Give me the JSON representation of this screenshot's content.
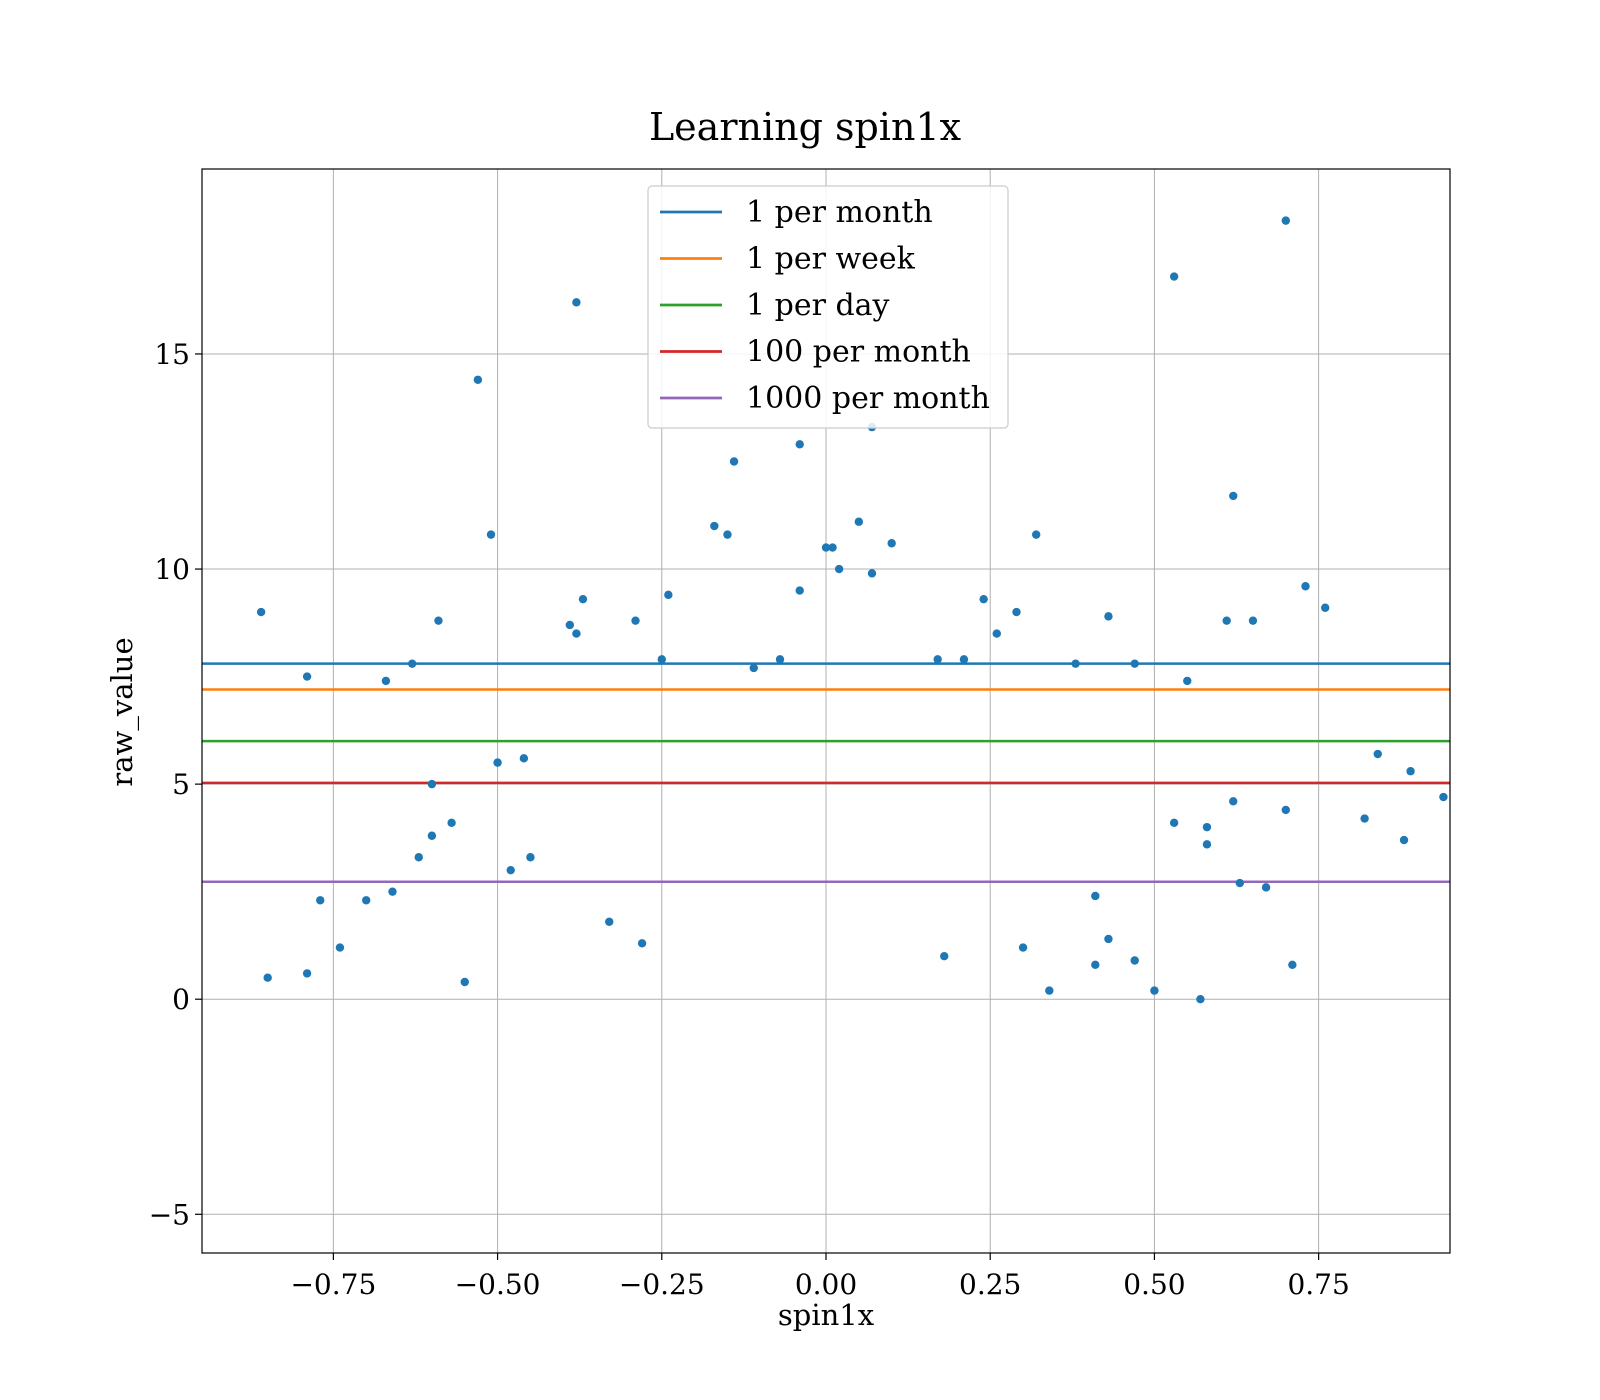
{
  "chart_data": {
    "type": "scatter",
    "title": "Learning spin1x",
    "xlabel": "spin1x",
    "ylabel": "raw_value",
    "xlim": [
      -0.95,
      0.95
    ],
    "ylim": [
      -5.9,
      19.3
    ],
    "xticks": [
      -0.75,
      -0.5,
      -0.25,
      0.0,
      0.25,
      0.5,
      0.75
    ],
    "xtick_labels": [
      "−0.75",
      "−0.50",
      "−0.25",
      "0.00",
      "0.25",
      "0.50",
      "0.75"
    ],
    "yticks": [
      -5,
      0,
      5,
      10,
      15
    ],
    "ytick_labels": [
      "−5",
      "0",
      "5",
      "10",
      "15"
    ],
    "grid": true,
    "legend_position": "top-center",
    "point_color": "#1f77b4",
    "horizontal_lines": [
      {
        "name": "1 per month",
        "y": 7.8,
        "color": "#1f77b4"
      },
      {
        "name": "1 per week",
        "y": 7.2,
        "color": "#ff7f0e"
      },
      {
        "name": "1 per day",
        "y": 6.0,
        "color": "#2ca02c"
      },
      {
        "name": "100 per month",
        "y": 5.03,
        "color": "#d62728"
      },
      {
        "name": "1000 per month",
        "y": 2.73,
        "color": "#9467bd"
      }
    ],
    "series": [
      {
        "x": [
          0.7,
          0.53,
          -0.38,
          -0.53,
          0.07,
          -0.14,
          -0.04,
          0.62,
          -0.51,
          0.32,
          0.05,
          -0.17,
          -0.15,
          0.1,
          0.01,
          -0.24,
          0.0,
          0.02,
          0.07,
          -0.04,
          0.73,
          0.76,
          -0.37,
          -0.29,
          0.24,
          0.29,
          -0.86,
          -0.59,
          0.43,
          0.61,
          0.65,
          0.47,
          -0.39,
          -0.38,
          -0.07,
          0.21,
          -0.25,
          -0.11,
          0.17,
          0.26,
          0.38,
          -0.63,
          -0.79,
          -0.67,
          0.55,
          0.84,
          0.89,
          0.94,
          -0.46,
          -0.5,
          0.62,
          0.67,
          -0.77,
          -0.7,
          -0.6,
          -0.57,
          0.58,
          0.82,
          0.88,
          0.7,
          -0.85,
          0.47,
          0.5,
          0.34,
          0.41,
          0.57,
          -0.62,
          -0.6,
          -0.66,
          0.43,
          0.3,
          0.18,
          -0.28,
          -0.33,
          0.53,
          0.58,
          -0.48,
          -0.45,
          0.41,
          0.63,
          -0.79,
          -0.74,
          -0.55,
          0.71
        ],
        "y": [
          18.1,
          16.8,
          16.2,
          14.4,
          13.3,
          12.5,
          12.9,
          11.7,
          10.8,
          10.8,
          11.1,
          11.0,
          10.8,
          10.6,
          10.5,
          9.4,
          10.5,
          10.0,
          9.9,
          9.5,
          9.6,
          9.1,
          9.3,
          8.8,
          9.3,
          9.0,
          9.0,
          8.8,
          8.9,
          8.8,
          8.8,
          7.8,
          8.7,
          8.5,
          7.9,
          7.9,
          7.9,
          7.7,
          7.9,
          8.5,
          7.8,
          7.8,
          7.5,
          7.4,
          7.4,
          5.7,
          5.3,
          4.7,
          5.6,
          5.5,
          4.6,
          2.6,
          2.3,
          2.3,
          3.8,
          4.1,
          3.6,
          4.2,
          3.7,
          4.4,
          0.5,
          0.9,
          0.2,
          0.2,
          0.8,
          0.0,
          3.3,
          5.0,
          2.5,
          1.4,
          1.2,
          1.0,
          1.3,
          1.8,
          4.1,
          4.0,
          3.0,
          3.3,
          2.4,
          2.7,
          0.6,
          1.2,
          0.4,
          0.8
        ]
      }
    ]
  }
}
